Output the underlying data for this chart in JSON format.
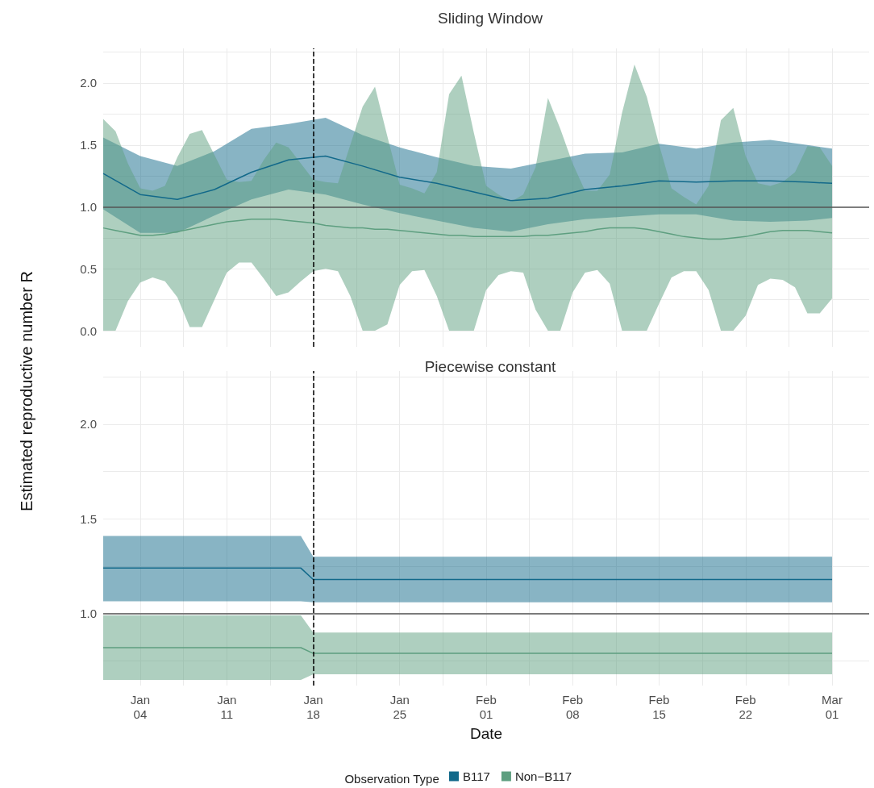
{
  "chart_data": [
    {
      "type": "line",
      "title": "Sliding Window",
      "ylabel": "Estimated reproductive number R",
      "xlim": [
        "--01-01",
        "--03-04"
      ],
      "ylim": [
        -0.13,
        2.28
      ],
      "xticks": [
        {
          "value": "--01-04",
          "label": "Jan\n04"
        },
        {
          "value": "--01-07T12:00",
          "label": null
        },
        {
          "value": "--01-11",
          "label": "Jan\n11"
        },
        {
          "value": "--01-14T12:00",
          "label": null
        },
        {
          "value": "--01-18",
          "label": "Jan\n18"
        },
        {
          "value": "--01-21T12:00",
          "label": null
        },
        {
          "value": "--01-25",
          "label": "Jan\n25"
        },
        {
          "value": "--01-28T12:00",
          "label": null
        },
        {
          "value": "--02-01",
          "label": "Feb\n01"
        },
        {
          "value": "--02-04T12:00",
          "label": null
        },
        {
          "value": "--02-08",
          "label": "Feb\n08"
        },
        {
          "value": "--02-11T12:00",
          "label": null
        },
        {
          "value": "--02-15",
          "label": "Feb\n15"
        },
        {
          "value": "--02-18T12:00",
          "label": null
        },
        {
          "value": "--02-22",
          "label": "Feb\n22"
        },
        {
          "value": "--02-25T12:00",
          "label": null
        },
        {
          "value": "--03-01",
          "label": "Mar\n01"
        }
      ],
      "yticks": [
        {
          "value": 0,
          "label": "0.0"
        },
        {
          "value": 0.25,
          "label": null
        },
        {
          "value": 0.5,
          "label": "0.5"
        },
        {
          "value": 0.75,
          "label": null
        },
        {
          "value": 1,
          "label": "1.0"
        },
        {
          "value": 1.25,
          "label": null
        },
        {
          "value": 1.5,
          "label": "1.5"
        },
        {
          "value": 1.75,
          "label": null
        },
        {
          "value": 2,
          "label": "2.0"
        },
        {
          "value": 2.25,
          "label": null
        }
      ],
      "tick_labels": "y",
      "grid": true,
      "ref_lines": [
        {
          "axis": "y",
          "value": 1,
          "color": "#555555",
          "line_style": "solid"
        },
        {
          "axis": "x",
          "value": "--01-18",
          "color": "#000000",
          "line_style": "dashed"
        }
      ],
      "series": [
        {
          "color": "#12698a",
          "x": [
            "--01-01",
            "--01-04",
            "--01-07",
            "--01-10",
            "--01-13",
            "--01-16",
            "--01-19",
            "--01-22",
            "--01-25",
            "--01-28",
            "--01-31",
            "--02-03",
            "--02-06",
            "--02-09",
            "--02-12",
            "--02-15",
            "--02-18",
            "--02-21",
            "--02-24",
            "--02-27",
            "--03-01"
          ],
          "values": [
            1.27,
            1.1,
            1.06,
            1.14,
            1.28,
            1.38,
            1.41,
            1.33,
            1.24,
            1.19,
            1.12,
            1.05,
            1.07,
            1.14,
            1.17,
            1.21,
            1.2,
            1.21,
            1.21,
            1.2,
            1.19
          ],
          "upper": [
            1.56,
            1.41,
            1.33,
            1.45,
            1.63,
            1.67,
            1.72,
            1.58,
            1.48,
            1.4,
            1.33,
            1.31,
            1.37,
            1.43,
            1.44,
            1.51,
            1.47,
            1.52,
            1.54,
            1.5,
            1.47
          ],
          "lower": [
            0.98,
            0.79,
            0.79,
            0.93,
            1.06,
            1.14,
            1.1,
            1.02,
            0.95,
            0.89,
            0.83,
            0.8,
            0.86,
            0.9,
            0.92,
            0.94,
            0.94,
            0.89,
            0.88,
            0.89,
            0.91
          ]
        },
        {
          "color": "#5e9f80",
          "x": [
            "--01-01",
            "--01-02",
            "--01-03",
            "--01-04",
            "--01-05",
            "--01-06",
            "--01-07",
            "--01-08",
            "--01-09",
            "--01-10",
            "--01-11",
            "--01-12",
            "--01-13",
            "--01-14",
            "--01-15",
            "--01-16",
            "--01-17",
            "--01-18",
            "--01-19",
            "--01-20",
            "--01-21",
            "--01-22",
            "--01-23",
            "--01-24",
            "--01-25",
            "--01-26",
            "--01-27",
            "--01-28",
            "--01-29",
            "--01-30",
            "--01-31",
            "--02-01",
            "--02-02",
            "--02-03",
            "--02-04",
            "--02-05",
            "--02-06",
            "--02-07",
            "--02-08",
            "--02-09",
            "--02-10",
            "--02-11",
            "--02-12",
            "--02-13",
            "--02-14",
            "--02-15",
            "--02-16",
            "--02-17",
            "--02-18",
            "--02-19",
            "--02-20",
            "--02-21",
            "--02-22",
            "--02-23",
            "--02-24",
            "--02-25",
            "--02-26",
            "--02-27",
            "--02-28",
            "--03-01"
          ],
          "values": [
            0.83,
            0.81,
            0.79,
            0.77,
            0.77,
            0.78,
            0.8,
            0.82,
            0.84,
            0.86,
            0.88,
            0.89,
            0.9,
            0.9,
            0.9,
            0.89,
            0.88,
            0.87,
            0.85,
            0.84,
            0.83,
            0.83,
            0.82,
            0.82,
            0.81,
            0.8,
            0.79,
            0.78,
            0.77,
            0.77,
            0.76,
            0.76,
            0.76,
            0.76,
            0.76,
            0.77,
            0.77,
            0.78,
            0.79,
            0.8,
            0.82,
            0.83,
            0.83,
            0.83,
            0.82,
            0.8,
            0.78,
            0.76,
            0.75,
            0.74,
            0.74,
            0.75,
            0.76,
            0.78,
            0.8,
            0.81,
            0.81,
            0.81,
            0.8,
            0.79
          ],
          "upper": [
            1.71,
            1.61,
            1.35,
            1.15,
            1.13,
            1.17,
            1.4,
            1.59,
            1.62,
            1.42,
            1.22,
            1.2,
            1.21,
            1.38,
            1.52,
            1.48,
            1.35,
            1.22,
            1.2,
            1.19,
            1.5,
            1.81,
            1.97,
            1.57,
            1.18,
            1.15,
            1.11,
            1.28,
            1.91,
            2.06,
            1.6,
            1.17,
            1.1,
            1.04,
            1.1,
            1.32,
            1.88,
            1.63,
            1.35,
            1.13,
            1.13,
            1.26,
            1.76,
            2.15,
            1.89,
            1.5,
            1.15,
            1.08,
            1.02,
            1.17,
            1.7,
            1.8,
            1.41,
            1.19,
            1.17,
            1.2,
            1.28,
            1.49,
            1.48,
            1.33
          ],
          "lower": [
            0,
            0,
            0.24,
            0.39,
            0.43,
            0.4,
            0.27,
            0.03,
            0.03,
            0.25,
            0.47,
            0.55,
            0.55,
            0.42,
            0.28,
            0.31,
            0.4,
            0.48,
            0.5,
            0.48,
            0.28,
            0,
            0,
            0.05,
            0.37,
            0.48,
            0.49,
            0.28,
            0,
            0,
            0,
            0.33,
            0.45,
            0.48,
            0.47,
            0.17,
            0,
            0,
            0.31,
            0.47,
            0.49,
            0.38,
            0,
            0,
            0,
            0.22,
            0.43,
            0.48,
            0.48,
            0.33,
            0,
            0,
            0.12,
            0.37,
            0.42,
            0.41,
            0.35,
            0.14,
            0.14,
            0.26
          ]
        }
      ]
    },
    {
      "type": "line",
      "title": "Piecewise constant",
      "xlabel": "Date",
      "legend_title": "Observation Type",
      "legend": "bottom",
      "xlim": [
        "--01-01",
        "--03-04"
      ],
      "ylim": [
        0.62,
        2.28
      ],
      "xticks": [
        {
          "value": "--01-04",
          "label": "Jan\n04"
        },
        {
          "value": "--01-07T12:00",
          "label": null
        },
        {
          "value": "--01-11",
          "label": "Jan\n11"
        },
        {
          "value": "--01-14T12:00",
          "label": null
        },
        {
          "value": "--01-18",
          "label": "Jan\n18"
        },
        {
          "value": "--01-21T12:00",
          "label": null
        },
        {
          "value": "--01-25",
          "label": "Jan\n25"
        },
        {
          "value": "--01-28T12:00",
          "label": null
        },
        {
          "value": "--02-01",
          "label": "Feb\n01"
        },
        {
          "value": "--02-04T12:00",
          "label": null
        },
        {
          "value": "--02-08",
          "label": "Feb\n08"
        },
        {
          "value": "--02-11T12:00",
          "label": null
        },
        {
          "value": "--02-15",
          "label": "Feb\n15"
        },
        {
          "value": "--02-18T12:00",
          "label": null
        },
        {
          "value": "--02-22",
          "label": "Feb\n22"
        },
        {
          "value": "--02-25T12:00",
          "label": null
        },
        {
          "value": "--03-01",
          "label": "Mar\n01"
        }
      ],
      "yticks": [
        {
          "value": 0.75,
          "label": null
        },
        {
          "value": 1,
          "label": "1.0"
        },
        {
          "value": 1.25,
          "label": null
        },
        {
          "value": 1.5,
          "label": "1.5"
        },
        {
          "value": 1.75,
          "label": null
        },
        {
          "value": 2,
          "label": "2.0"
        },
        {
          "value": 2.25,
          "label": null
        }
      ],
      "grid": true,
      "ref_lines": [
        {
          "axis": "y",
          "value": 1,
          "color": "#555555",
          "line_style": "solid"
        },
        {
          "axis": "x",
          "value": "--01-18",
          "color": "#000000",
          "line_style": "dashed"
        }
      ],
      "series": [
        {
          "name": "B117",
          "color": "#12698a",
          "x": [
            "--01-01",
            "--01-17",
            "--01-18",
            "--03-01"
          ],
          "values": [
            1.24,
            1.24,
            1.18,
            1.18
          ],
          "upper": [
            1.41,
            1.41,
            1.3,
            1.3
          ],
          "lower": [
            1.065,
            1.065,
            1.06,
            1.06
          ]
        },
        {
          "name": "Non−B117",
          "color": "#5e9f80",
          "x": [
            "--01-01",
            "--01-17",
            "--01-18",
            "--03-01"
          ],
          "values": [
            0.82,
            0.82,
            0.79,
            0.79
          ],
          "upper": [
            0.99,
            0.99,
            0.9,
            0.9
          ],
          "lower": [
            0.65,
            0.65,
            0.68,
            0.68
          ]
        }
      ]
    }
  ]
}
